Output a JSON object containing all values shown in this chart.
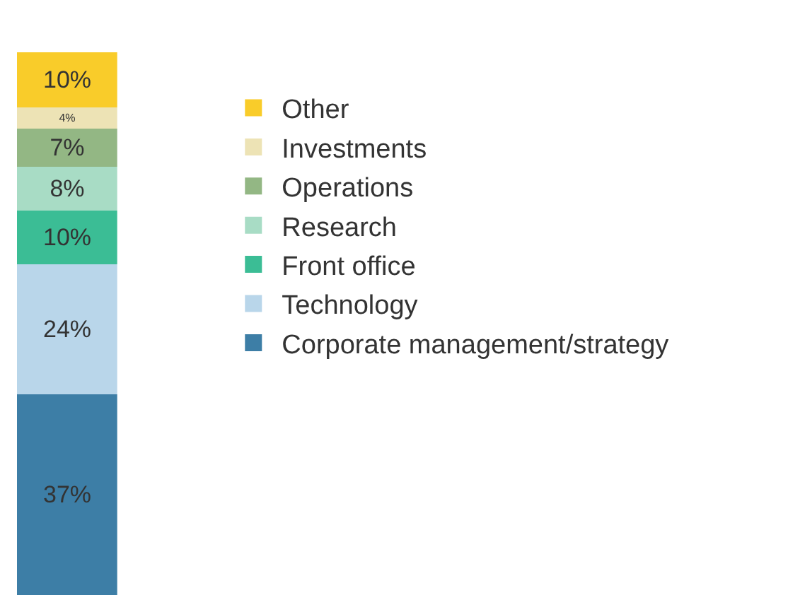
{
  "chart_data": {
    "type": "bar",
    "stacked": true,
    "categories": [
      null
    ],
    "tick_labels": false,
    "legend": "right",
    "series": [
      {
        "name": "Corporate management/strategy",
        "color": "#3d7ea6",
        "values": [
          37
        ],
        "value_labels": [
          "37%"
        ]
      },
      {
        "name": "Technology",
        "color": "#b9d6ea",
        "values": [
          24
        ],
        "value_labels": [
          "24%"
        ]
      },
      {
        "name": "Front office",
        "color": "#3bbd95",
        "values": [
          10
        ],
        "value_labels": [
          "10%"
        ]
      },
      {
        "name": "Research",
        "color": "#a8dcc5",
        "values": [
          8
        ],
        "value_labels": [
          "8%"
        ]
      },
      {
        "name": "Operations",
        "color": "#93b784",
        "values": [
          7
        ],
        "value_labels": [
          "7%"
        ]
      },
      {
        "name": "Investments",
        "color": "#ede3b5",
        "values": [
          4
        ],
        "value_labels": [
          "4%"
        ]
      },
      {
        "name": "Other",
        "color": "#f9cc2a",
        "values": [
          10
        ],
        "value_labels": [
          "10%"
        ]
      }
    ]
  }
}
